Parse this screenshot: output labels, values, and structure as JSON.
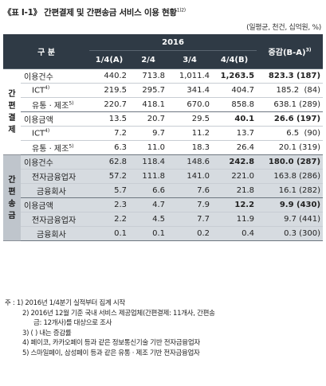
{
  "title": "《표 Ⅰ-1》 간편결제 및 간편송금 서비스 이용 현황",
  "title_sup": "1)2)",
  "unit": "(일평균, 천건, 십억원, %)",
  "header": {
    "col_group": "구 분",
    "year": "2016",
    "quarters": [
      "1/4(A)",
      "2/4",
      "3/4",
      "4/4(B)"
    ],
    "change": "증감(B-A)",
    "change_sup": "3)"
  },
  "groups": [
    {
      "label": [
        "간",
        "편",
        "결",
        "제"
      ],
      "rows": [
        {
          "label": "이용건수",
          "indent": 0,
          "values": [
            "440.2",
            "713.8",
            "1,011.4",
            "1,263.5"
          ],
          "change": "823.3 (187)",
          "bold_last": true
        },
        {
          "label": "ICT",
          "sup": "4)",
          "indent": 1,
          "values": [
            "219.5",
            "295.7",
            "341.4",
            "404.7"
          ],
          "change": "185.2  (84)",
          "bold_last": false
        },
        {
          "label": "유통 · 제조",
          "sup": "5)",
          "indent": 1,
          "values": [
            "220.7",
            "418.1",
            "670.0",
            "858.8"
          ],
          "change": "638.1 (289)",
          "bold_last": false
        },
        {
          "label": "이용금액",
          "indent": 0,
          "values": [
            "13.5",
            "20.7",
            "29.5",
            "40.1"
          ],
          "change": "26.6 (197)",
          "bold_last": true
        },
        {
          "label": "ICT",
          "sup": "4)",
          "indent": 1,
          "values": [
            "7.2",
            "9.7",
            "11.2",
            "13.7"
          ],
          "change": "6.5  (90)",
          "bold_last": false
        },
        {
          "label": "유통 · 제조",
          "sup": "5)",
          "indent": 1,
          "values": [
            "6.3",
            "11.0",
            "18.3",
            "26.4"
          ],
          "change": "20.1 (319)",
          "bold_last": false
        }
      ]
    },
    {
      "label": [
        "간",
        "편",
        "송",
        "금"
      ],
      "rows": [
        {
          "label": "이용건수",
          "indent": 0,
          "values": [
            "62.8",
            "118.4",
            "148.6",
            "242.8"
          ],
          "change": "180.0 (287)",
          "bold_last": true
        },
        {
          "label": "전자금융업자",
          "indent": 1,
          "values": [
            "57.2",
            "111.8",
            "141.0",
            "221.0"
          ],
          "change": "163.8 (286)",
          "bold_last": false
        },
        {
          "label": "금융회사",
          "indent": 2,
          "values": [
            "5.7",
            "6.6",
            "7.6",
            "21.8"
          ],
          "change": "16.1 (282)",
          "bold_last": false
        },
        {
          "label": "이용금액",
          "indent": 0,
          "values": [
            "2.3",
            "4.7",
            "7.9",
            "12.2"
          ],
          "change": "9.9 (430)",
          "bold_last": true
        },
        {
          "label": "전자금융업자",
          "indent": 1,
          "values": [
            "2.2",
            "4.5",
            "7.7",
            "11.9"
          ],
          "change": "9.7 (441)",
          "bold_last": false
        },
        {
          "label": "금융회사",
          "indent": 2,
          "values": [
            "0.1",
            "0.1",
            "0.2",
            "0.4"
          ],
          "change": "0.3 (300)",
          "bold_last": false
        }
      ]
    }
  ],
  "notes": [
    "주 : 1) 2016년 1/4분기 실적부터 집계 시작",
    "2) 2016년 12월 기준 국내 서비스 제공업체(간편결제: 11개사, 간편송",
    "금: 12개사)를 대상으로 조사",
    "3) ( ) 내는 증감률",
    "4) 페이코, 카카오페이 등과 같은 정보통신기술 기반 전자금융업자",
    "5) 스마일페이, 삼성페이 등과 같은 유통 · 제조 기반 전자금융업자"
  ]
}
